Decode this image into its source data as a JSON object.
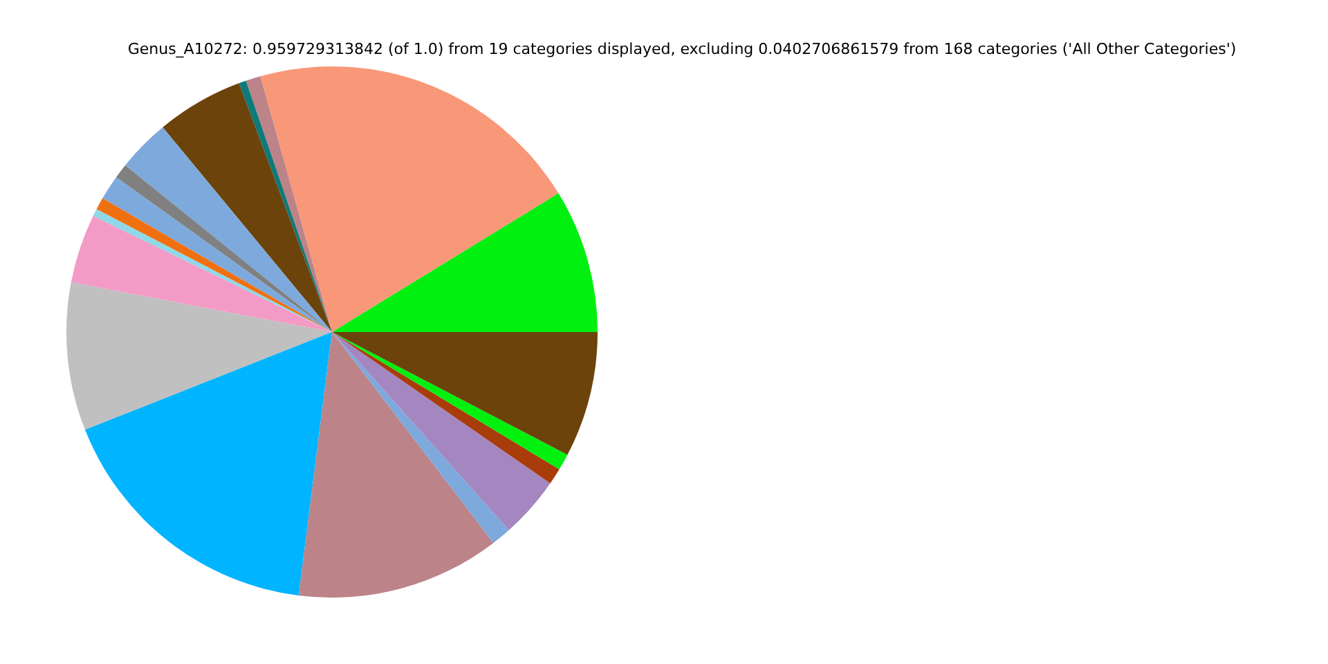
{
  "chart_data": {
    "type": "pie",
    "title": "Genus_A10272: 0.959729313842 (of 1.0) from 19 categories displayed, excluding 0.0402706861579 from 168 categories ('All Other Categories')",
    "categories": [
      null,
      null,
      null,
      null,
      null,
      null,
      null,
      null,
      null,
      null,
      null,
      null,
      null,
      null,
      null,
      null,
      null,
      null,
      null
    ],
    "values": [
      8.75,
      20.6,
      0.9,
      0.45,
      5.3,
      3.2,
      0.9,
      1.5,
      0.75,
      0.45,
      4.2,
      9.0,
      17.0,
      12.4,
      1.2,
      3.75,
      1.0,
      1.0,
      7.65
    ],
    "colors": [
      "#02f010",
      "#f99879",
      "#bc8388",
      "#0e7a7a",
      "#6b430b",
      "#7ea9dc",
      "#808080",
      "#7ea9dc",
      "#f07010",
      "#8fd8e8",
      "#f49ac6",
      "#c0c0c0",
      "#00b4ff",
      "#bc8388",
      "#7ea9dc",
      "#a487c1",
      "#a83c0a",
      "#02f010",
      "#6b430b"
    ]
  }
}
